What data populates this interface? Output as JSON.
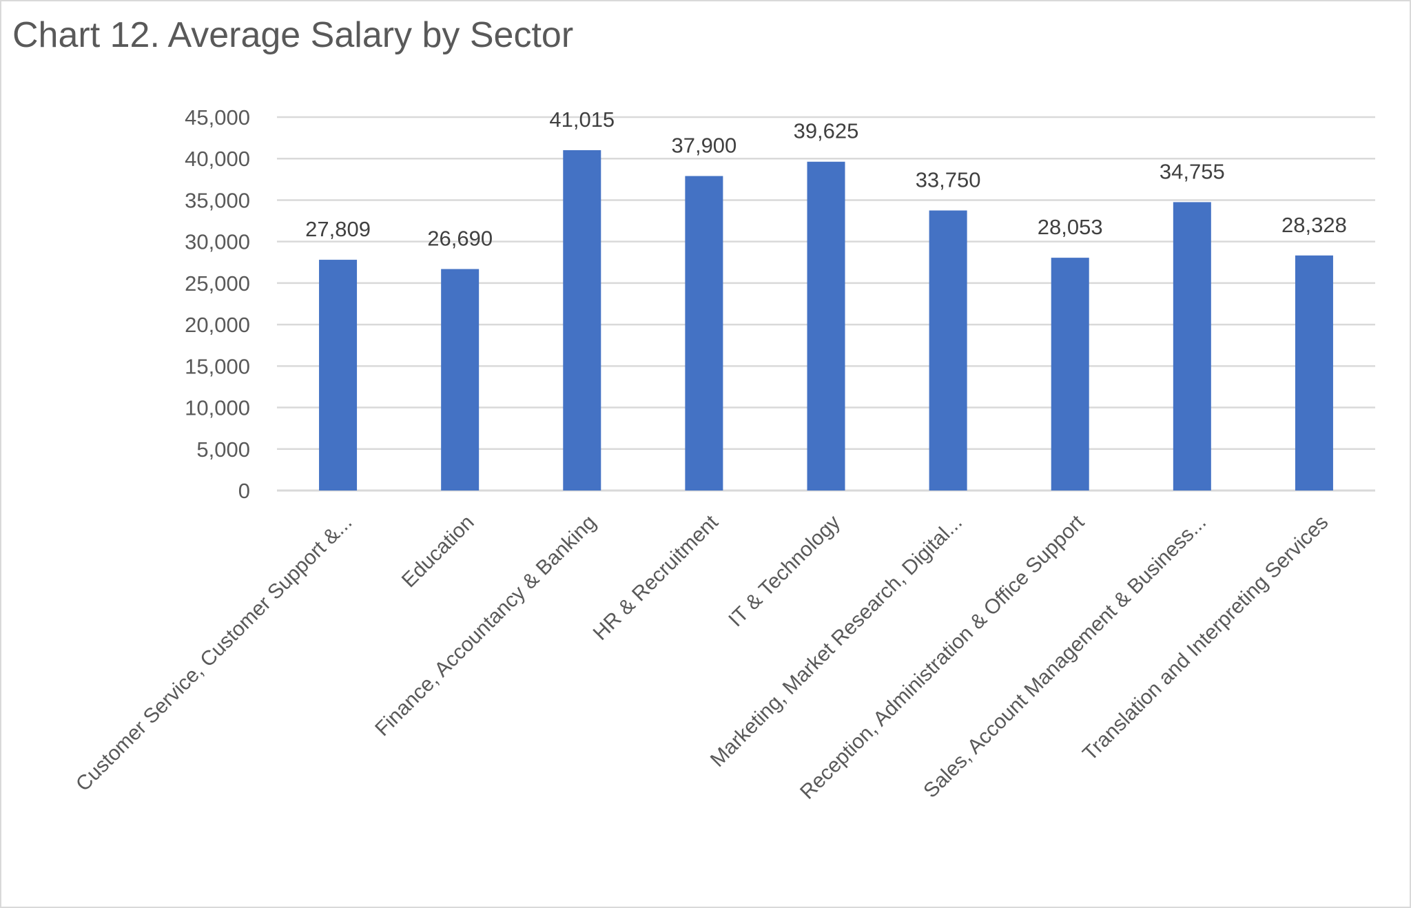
{
  "chart_data": {
    "type": "bar",
    "title": "Chart 12. Average Salary by Sector",
    "xlabel": "",
    "ylabel": "",
    "ylim": [
      0,
      45000
    ],
    "yticks": [
      "0",
      "5,000",
      "10,000",
      "15,000",
      "20,000",
      "25,000",
      "30,000",
      "35,000",
      "40,000",
      "45,000"
    ],
    "grid": true,
    "legend": "none",
    "bar_color": "#4472C4",
    "categories": [
      "Customer Service, Customer Support &...",
      "Education",
      "Finance, Accountancy & Banking",
      "HR & Recruitment",
      "IT & Technology",
      "Marketing, Market Research, Digital...",
      "Reception, Administration & Office Support",
      "Sales, Account Management & Business...",
      "Translation and Interpreting Services"
    ],
    "values": [
      27809,
      26690,
      41015,
      37900,
      39625,
      33750,
      28053,
      34755,
      28328
    ],
    "data_labels": [
      "27,809",
      "26,690",
      "41,015",
      "37,900",
      "39,625",
      "33,750",
      "28,053",
      "34,755",
      "28,328"
    ]
  }
}
